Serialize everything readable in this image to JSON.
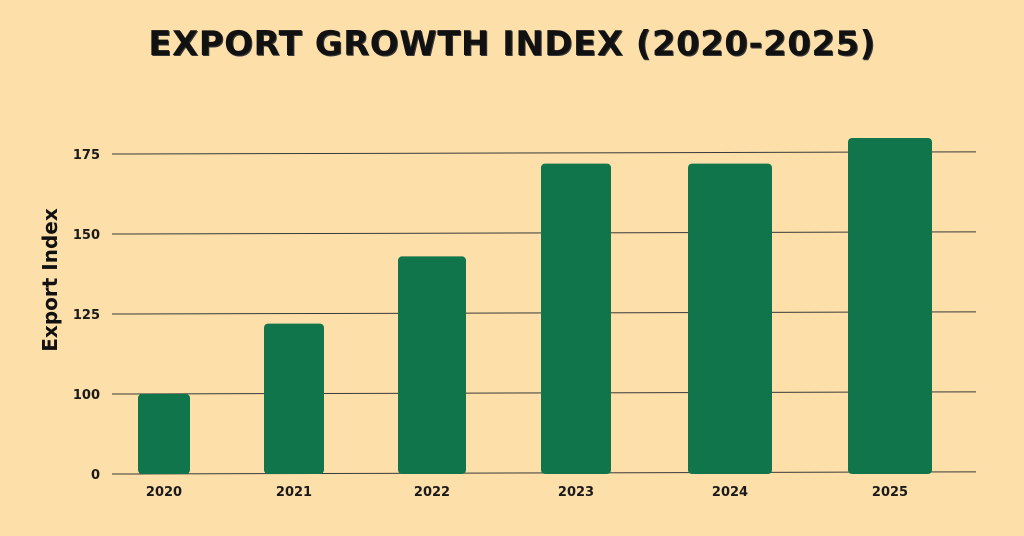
{
  "colors": {
    "background": "#fddfa9",
    "bar": "#11754b",
    "gridline": "#3a3a3a",
    "text": "#111111"
  },
  "chart_data": {
    "type": "bar",
    "title": "EXPORT GROWTH INDEX (2020-2025)",
    "xlabel": "",
    "ylabel": "Export Index",
    "categories": [
      "2020",
      "2021",
      "2022",
      "2023",
      "2024",
      "2025"
    ],
    "values": [
      100,
      122,
      143,
      172,
      172,
      180
    ],
    "y_ticks": [
      0,
      100,
      125,
      150,
      175
    ],
    "ylim_note": "axis is broken: 0 then 100–175",
    "grid": true,
    "legend": "none"
  }
}
